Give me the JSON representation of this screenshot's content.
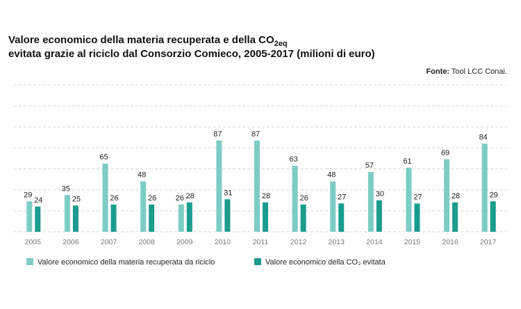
{
  "chart_data": {
    "type": "bar",
    "title": {
      "text": "Valore economico della materia recuperata e della CO",
      "sub": "2eq",
      "line2": "evitata grazie al riciclo dal Consorzio Comieco, 2005-2017 (milioni di euro)"
    },
    "source_label": "Fonte:",
    "source": "Tool LCC Conai.",
    "categories": [
      "2005",
      "2006",
      "2007",
      "2008",
      "2009",
      "2010",
      "2011",
      "2012",
      "2013",
      "2014",
      "2015",
      "2016",
      "2017"
    ],
    "series": [
      {
        "name": "Valore economico della materia recuperata da riciclo",
        "color": "#7dccc6",
        "values": [
          29,
          35,
          65,
          48,
          26,
          87,
          87,
          63,
          48,
          57,
          61,
          69,
          84
        ]
      },
      {
        "name": "Valore economico della CO₂ evitata",
        "color": "#1a9c8e",
        "values": [
          24,
          25,
          26,
          26,
          28,
          31,
          28,
          26,
          27,
          30,
          27,
          28,
          29
        ]
      }
    ],
    "ylim": [
      0,
      140
    ],
    "yticks": [
      0,
      20,
      40,
      60,
      80,
      100,
      120,
      140
    ],
    "grid": true
  }
}
